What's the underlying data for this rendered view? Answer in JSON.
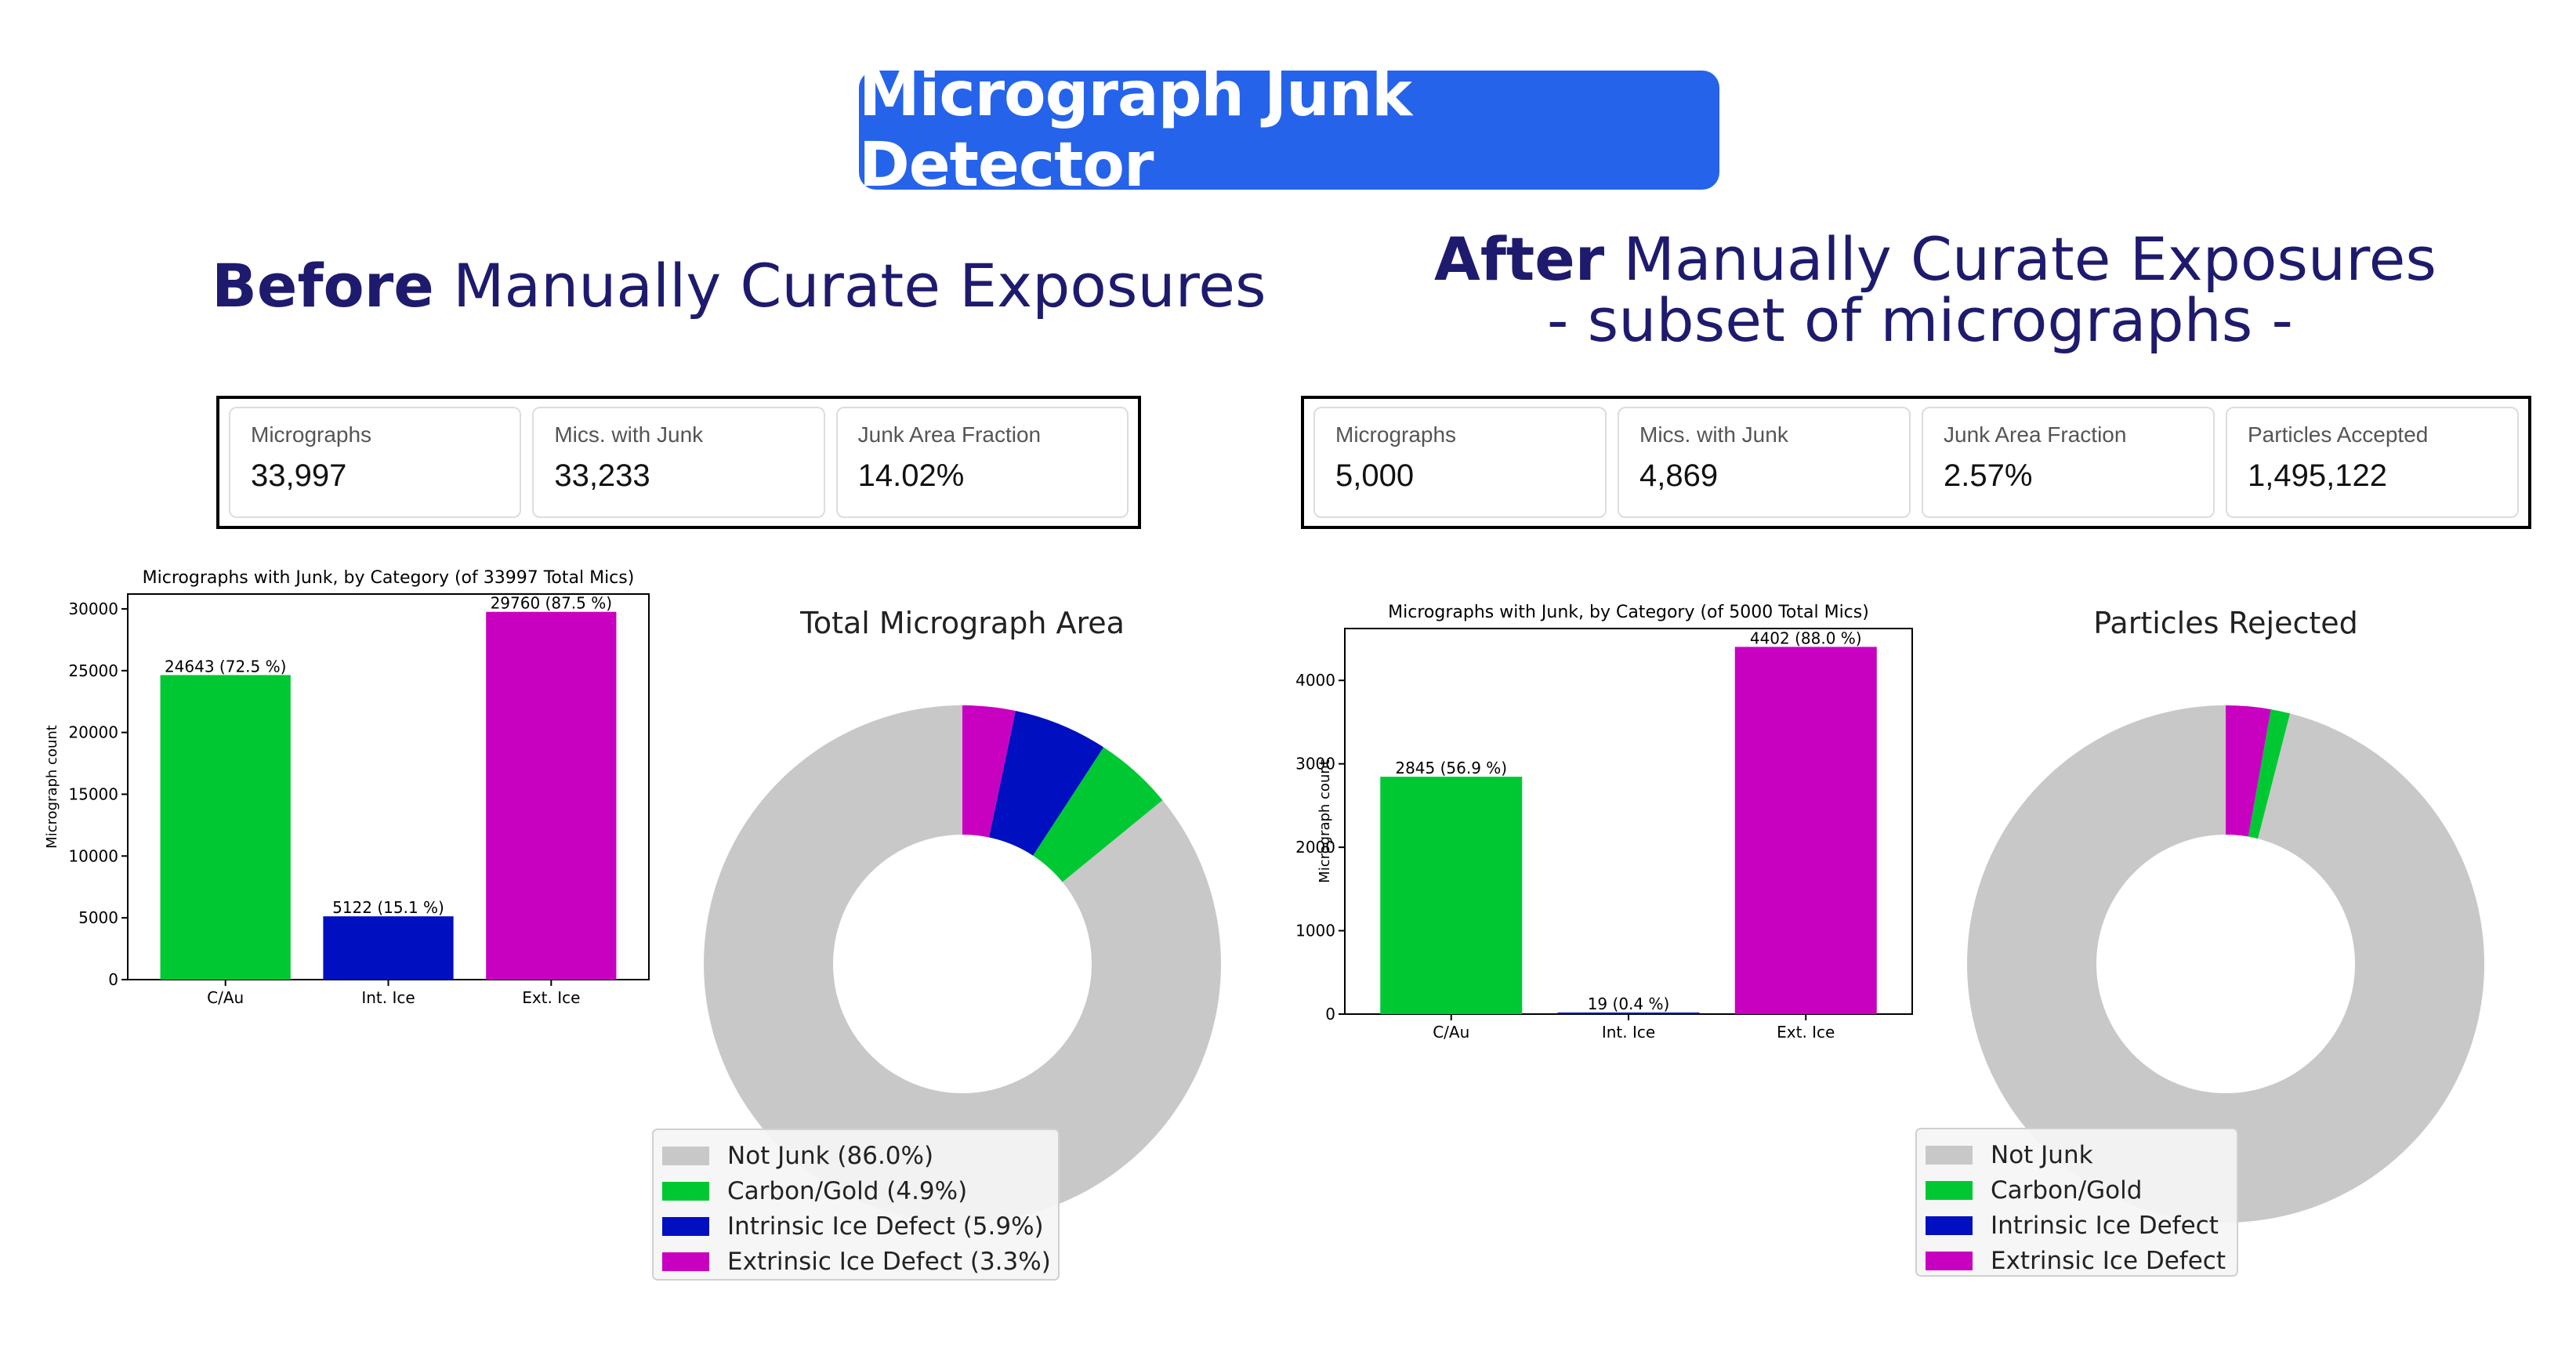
{
  "app_title": "Micrograph Junk Detector",
  "left": {
    "heading_bold": "Before",
    "heading_rest": " Manually Curate Exposures",
    "stats": [
      {
        "label": "Micrographs",
        "value": "33,997"
      },
      {
        "label": "Mics. with Junk",
        "value": "33,233"
      },
      {
        "label": "Junk Area Fraction",
        "value": "14.02%"
      }
    ]
  },
  "right": {
    "heading_bold": "After",
    "heading_rest": " Manually Curate Exposures",
    "heading_line2": "- subset of micrographs -",
    "stats": [
      {
        "label": "Micrographs",
        "value": "5,000"
      },
      {
        "label": "Mics. with Junk",
        "value": "4,869"
      },
      {
        "label": "Junk Area Fraction",
        "value": "2.57%"
      },
      {
        "label": "Particles Accepted",
        "value": "1,495,122"
      }
    ]
  },
  "colors": {
    "carbon_gold": "#00c832",
    "intrinsic": "#0010c0",
    "extrinsic": "#c800c0",
    "not_junk": "#c8c8c8",
    "pill": "#2563eb",
    "heading": "#1e1b6e"
  },
  "chart_data": [
    {
      "type": "bar",
      "title": "Micrographs with Junk, by Category (of 33997 Total Mics)",
      "xlabel": "",
      "ylabel": "Micrograph count",
      "categories": [
        "C/Au",
        "Int. Ice",
        "Ext. Ice"
      ],
      "values": [
        24643,
        5122,
        29760
      ],
      "data_labels": [
        "24643 (72.5 %)",
        "5122 (15.1 %)",
        "29760 (87.5 %)"
      ],
      "ylim": [
        0,
        31200
      ],
      "yticks": [
        0,
        5000,
        10000,
        15000,
        20000,
        25000,
        30000
      ],
      "colors": [
        "#00c832",
        "#0010c0",
        "#c800c0"
      ]
    },
    {
      "type": "pie",
      "title": "Total Micrograph Area",
      "labels": [
        "Not Junk",
        "Carbon/Gold",
        "Intrinsic Ice Defect",
        "Extrinsic Ice Defect"
      ],
      "values": [
        86.0,
        4.9,
        5.9,
        3.3
      ],
      "legend": [
        "Not Junk (86.0%)",
        "Carbon/Gold (4.9%)",
        "Intrinsic Ice Defect (5.9%)",
        "Extrinsic Ice Defect (3.3%)"
      ],
      "colors": [
        "#c8c8c8",
        "#00c832",
        "#0010c0",
        "#c800c0"
      ],
      "donut": true,
      "legend_position": "lower-left"
    },
    {
      "type": "bar",
      "title": "Micrographs with Junk, by Category (of 5000 Total Mics)",
      "xlabel": "",
      "ylabel": "Micrograph count",
      "categories": [
        "C/Au",
        "Int. Ice",
        "Ext. Ice"
      ],
      "values": [
        2845,
        19,
        4402
      ],
      "data_labels": [
        "2845 (56.9 %)",
        "19 (0.4 %)",
        "4402 (88.0 %)"
      ],
      "ylim": [
        0,
        4622
      ],
      "yticks": [
        0,
        1000,
        2000,
        3000,
        4000
      ],
      "colors": [
        "#00c832",
        "#0010c0",
        "#c800c0"
      ]
    },
    {
      "type": "pie",
      "title": "Particles Rejected",
      "labels": [
        "Not Junk",
        "Carbon/Gold",
        "Intrinsic Ice Defect",
        "Extrinsic Ice Defect"
      ],
      "values": [
        96.0,
        1.2,
        0.0,
        2.8
      ],
      "legend": [
        "Not Junk",
        "Carbon/Gold",
        "Intrinsic Ice Defect",
        "Extrinsic Ice Defect"
      ],
      "colors": [
        "#c8c8c8",
        "#00c832",
        "#0010c0",
        "#c800c0"
      ],
      "donut": true,
      "legend_position": "lower-left"
    }
  ]
}
